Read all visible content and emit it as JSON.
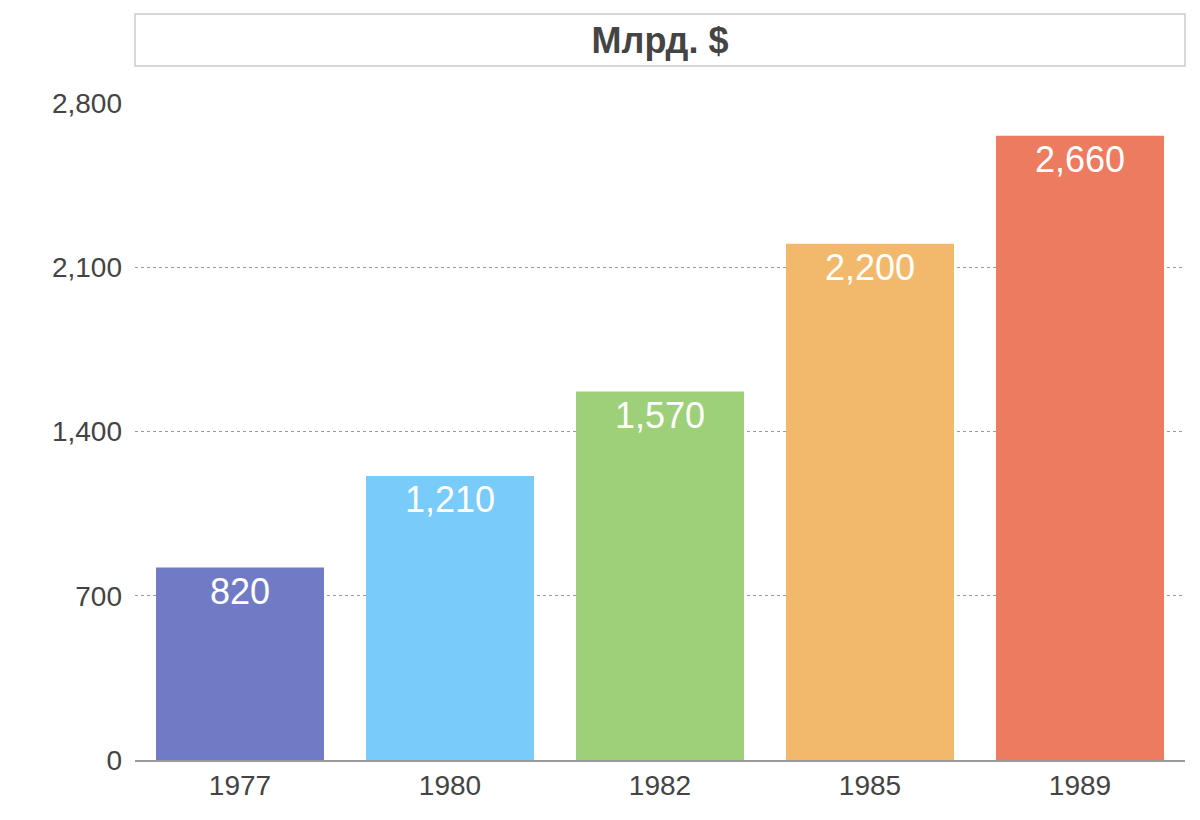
{
  "chart_data": {
    "type": "bar",
    "title": "Млрд. $",
    "categories": [
      "1977",
      "1980",
      "1982",
      "1985",
      "1989"
    ],
    "values": [
      820,
      1210,
      1570,
      2200,
      2660
    ],
    "value_labels": [
      "820",
      "1,210",
      "1,570",
      "2,200",
      "2,660"
    ],
    "colors": [
      "#717bc5",
      "#79cbf9",
      "#9ecf79",
      "#f2b96d",
      "#ec7b5f"
    ],
    "ylim": [
      0,
      2800
    ],
    "yticks": [
      0,
      700,
      {
        "value": 1400,
        "label": "1,400"
      },
      {
        "value": 2100,
        "label": "2,100"
      },
      {
        "value": 2800,
        "label": "2,800"
      }
    ],
    "grid": true,
    "data_labels": true
  }
}
